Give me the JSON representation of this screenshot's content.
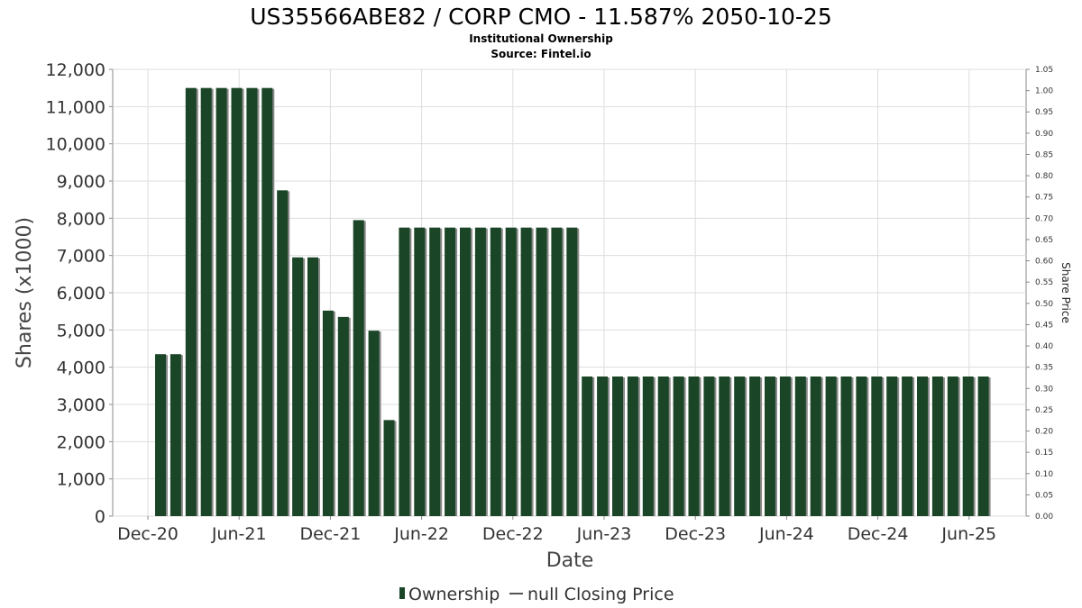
{
  "colors": {
    "bar": "#1b4527",
    "bar_shadow": "#8a8a8a",
    "grid": "#dddddd",
    "axis": "#888888"
  },
  "chart_data": {
    "type": "bar",
    "title": "US35566ABE82 / CORP CMO - 11.587% 2050-10-25",
    "subtitle": "Institutional Ownership",
    "source": "Source: Fintel.io",
    "xlabel": "Date",
    "ylabel": "Shares (x1000)",
    "y2label": "Share Price",
    "ylim": [
      0,
      12000
    ],
    "y2lim": [
      0,
      1.05
    ],
    "yticks": [
      "0",
      "1,000",
      "2,000",
      "3,000",
      "4,000",
      "5,000",
      "6,000",
      "7,000",
      "8,000",
      "9,000",
      "10,000",
      "11,000",
      "12,000"
    ],
    "y2ticks": [
      "0.00",
      "0.05",
      "0.10",
      "0.15",
      "0.20",
      "0.25",
      "0.30",
      "0.35",
      "0.40",
      "0.45",
      "0.50",
      "0.55",
      "0.60",
      "0.65",
      "0.70",
      "0.75",
      "0.80",
      "0.85",
      "0.90",
      "0.95",
      "1.00",
      "1.05"
    ],
    "xticks": [
      "Dec-20",
      "Jun-21",
      "Dec-21",
      "Jun-22",
      "Dec-22",
      "Jun-23",
      "Dec-23",
      "Jun-24",
      "Dec-24",
      "Jun-25"
    ],
    "grid": true,
    "legend": {
      "position": "bottom",
      "items": [
        "Ownership",
        "null Closing Price"
      ]
    },
    "series": [
      {
        "name": "Ownership",
        "values": [
          4350,
          4350,
          11500,
          11500,
          11500,
          11500,
          11500,
          11500,
          8750,
          6950,
          6950,
          5520,
          5350,
          7950,
          4980,
          2580,
          7750,
          7750,
          7750,
          7750,
          7750,
          7750,
          7750,
          7750,
          7750,
          7750,
          7750,
          7750,
          3750,
          3750,
          3750,
          3750,
          3750,
          3750,
          3750,
          3750,
          3750,
          3750,
          3750,
          3750,
          3750,
          3750,
          3750,
          3750,
          3750,
          3750,
          3750,
          3750,
          3750,
          3750,
          3750,
          3750,
          3750,
          3750,
          3750
        ]
      }
    ]
  }
}
